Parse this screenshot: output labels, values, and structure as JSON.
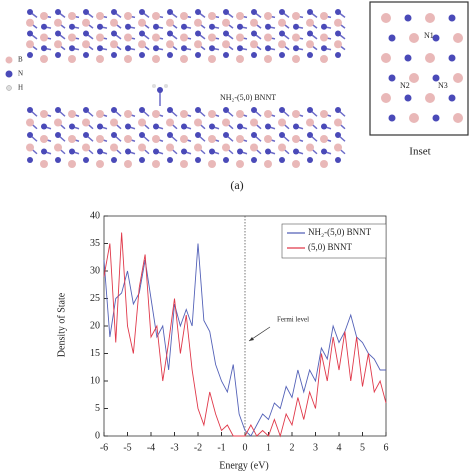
{
  "figure": {
    "atom_legend": [
      "B",
      "N",
      "H"
    ],
    "molecule_label": "NH₂-(5,0) BNNT",
    "inset_title": "Inset",
    "inset_atoms": [
      "N1",
      "N2",
      "N3"
    ],
    "panel_label": "(a)"
  },
  "chart_data": {
    "type": "line",
    "xlabel": "Energy (eV)",
    "ylabel": "Density of State",
    "annotation": "Fermi level",
    "vline": 0,
    "x": [
      -6,
      -5.75,
      -5.5,
      -5.25,
      -5,
      -4.75,
      -4.5,
      -4.25,
      -4,
      -3.75,
      -3.5,
      -3.25,
      -3,
      -2.75,
      -2.5,
      -2.25,
      -2,
      -1.75,
      -1.5,
      -1.25,
      -1,
      -0.75,
      -0.5,
      -0.25,
      0,
      0.25,
      0.5,
      0.75,
      1,
      1.25,
      1.5,
      1.75,
      2,
      2.25,
      2.5,
      2.75,
      3,
      3.25,
      3.5,
      3.75,
      4,
      4.25,
      4.5,
      4.75,
      5,
      5.25,
      5.5,
      5.75,
      6
    ],
    "series": [
      {
        "name": "NH₂-(5,0) BNNT",
        "color": "#5462b8",
        "values": [
          32,
          18,
          25,
          26,
          30,
          24,
          26,
          32,
          25,
          18,
          20,
          12,
          24,
          20,
          23,
          20,
          35,
          21,
          19,
          13,
          10,
          8,
          13,
          4,
          1,
          0,
          2,
          4,
          3,
          6,
          5,
          9,
          7,
          12,
          8,
          12,
          10,
          16,
          14,
          20,
          17,
          19,
          22,
          18,
          17,
          15,
          14,
          12,
          12
        ]
      },
      {
        "name": "(5,0) BNNT",
        "color": "#e0394a",
        "values": [
          29,
          35,
          17,
          37,
          20,
          15,
          27,
          33,
          18,
          20,
          10,
          17,
          25,
          15,
          22,
          12,
          5,
          2,
          8,
          4,
          1,
          2,
          0,
          0,
          0,
          2,
          0,
          1,
          0,
          3,
          0,
          4,
          2,
          7,
          3,
          8,
          5,
          15,
          10,
          18,
          12,
          19,
          10,
          18,
          9,
          15,
          8,
          10,
          6
        ]
      }
    ],
    "xlim": [
      -6,
      6
    ],
    "ylim": [
      0,
      40
    ],
    "xticks": [
      -6,
      -5,
      -4,
      -3,
      -2,
      -1,
      0,
      1,
      2,
      3,
      4,
      5,
      6
    ],
    "yticks": [
      0,
      5,
      10,
      15,
      20,
      25,
      30,
      35,
      40
    ]
  }
}
